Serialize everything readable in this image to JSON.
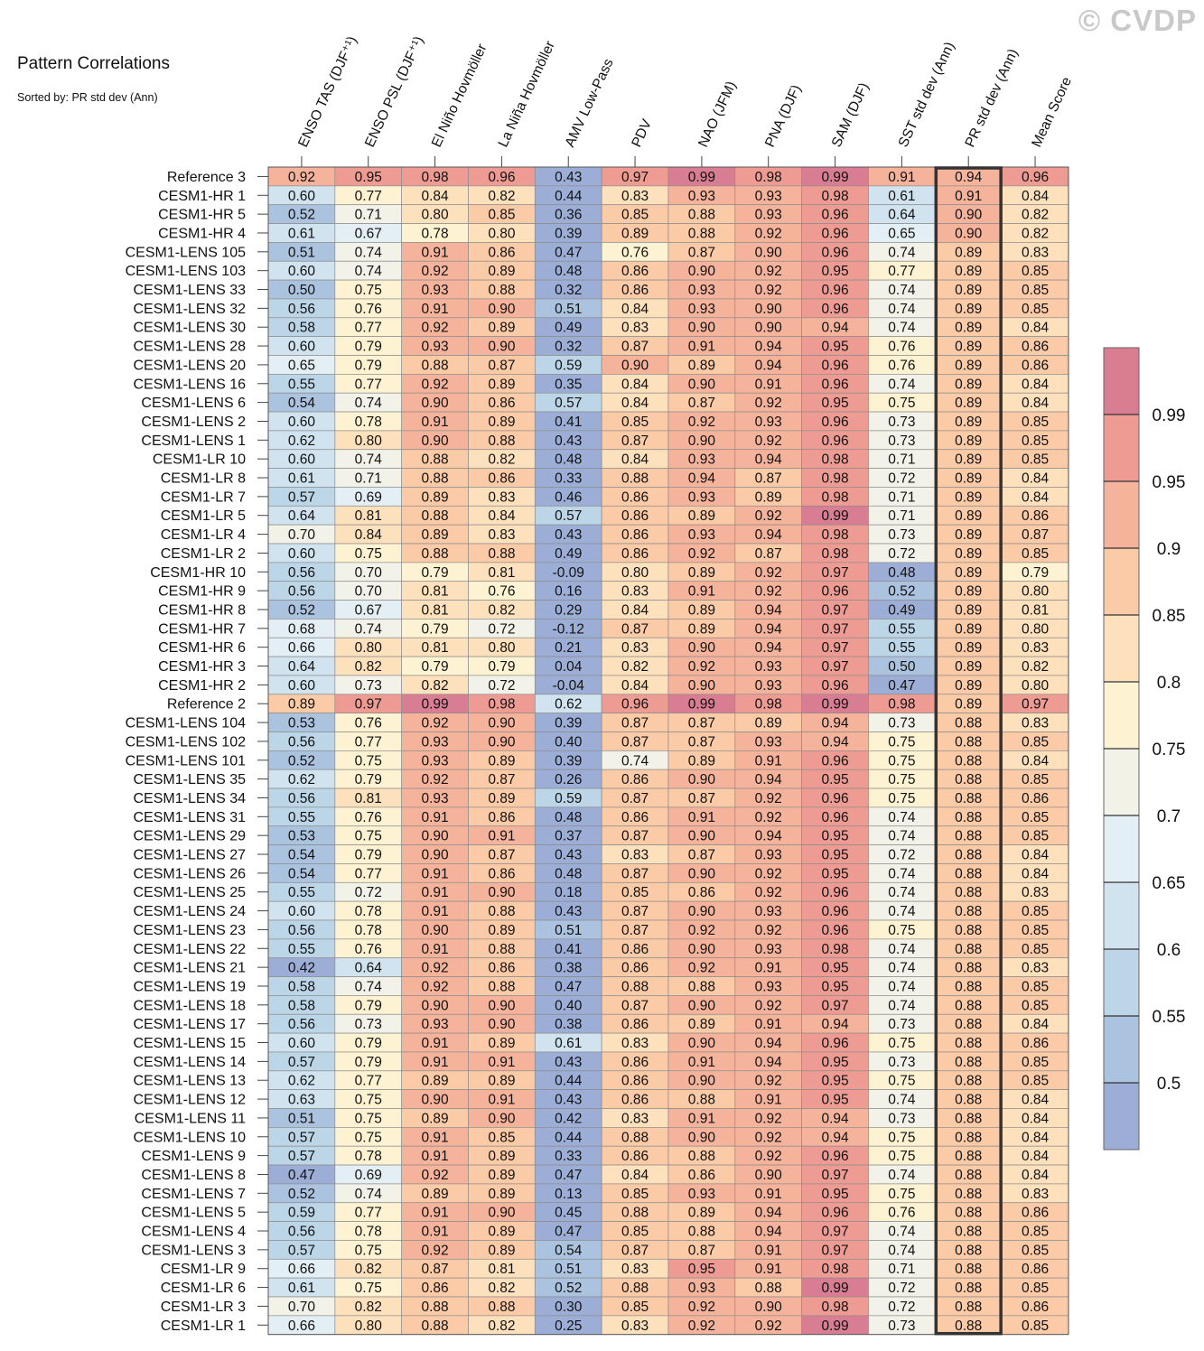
{
  "header": {
    "title": "Pattern Correlations",
    "subtitle": "Sorted by: PR std dev (Ann)",
    "watermark": "© CVDP"
  },
  "chart_data": {
    "type": "heatmap",
    "columns": [
      "ENSO TAS (DJF⁺¹)",
      "ENSO PSL (DJF⁺¹)",
      "El Niño Hovmöller",
      "La Niña Hovmöller",
      "AMV Low-Pass",
      "PDV",
      "NAO (JFM)",
      "PNA (DJF)",
      "SAM (DJF)",
      "SST std dev (Ann)",
      "PR std dev (Ann)",
      "Mean Score"
    ],
    "highlighted_column": "PR std dev (Ann)",
    "rows": [
      {
        "name": "Reference 3",
        "values": [
          "0.92",
          "0.95",
          "0.98",
          "0.96",
          "0.43",
          "0.97",
          "0.99",
          "0.98",
          "0.99",
          "0.91",
          "0.94",
          "0.96"
        ]
      },
      {
        "name": "CESM1-HR 1",
        "values": [
          "0.60",
          "0.77",
          "0.84",
          "0.82",
          "0.44",
          "0.83",
          "0.93",
          "0.93",
          "0.98",
          "0.61",
          "0.91",
          "0.84"
        ]
      },
      {
        "name": "CESM1-HR 5",
        "values": [
          "0.52",
          "0.71",
          "0.80",
          "0.85",
          "0.36",
          "0.85",
          "0.88",
          "0.93",
          "0.96",
          "0.64",
          "0.90",
          "0.82"
        ]
      },
      {
        "name": "CESM1-HR 4",
        "values": [
          "0.61",
          "0.67",
          "0.78",
          "0.80",
          "0.39",
          "0.89",
          "0.88",
          "0.92",
          "0.96",
          "0.65",
          "0.90",
          "0.82"
        ]
      },
      {
        "name": "CESM1-LENS 105",
        "values": [
          "0.51",
          "0.74",
          "0.91",
          "0.86",
          "0.47",
          "0.76",
          "0.87",
          "0.90",
          "0.96",
          "0.74",
          "0.89",
          "0.83"
        ]
      },
      {
        "name": "CESM1-LENS 103",
        "values": [
          "0.60",
          "0.74",
          "0.92",
          "0.89",
          "0.48",
          "0.86",
          "0.90",
          "0.92",
          "0.95",
          "0.77",
          "0.89",
          "0.85"
        ]
      },
      {
        "name": "CESM1-LENS 33",
        "values": [
          "0.50",
          "0.75",
          "0.93",
          "0.88",
          "0.32",
          "0.86",
          "0.93",
          "0.92",
          "0.96",
          "0.74",
          "0.89",
          "0.85"
        ]
      },
      {
        "name": "CESM1-LENS 32",
        "values": [
          "0.56",
          "0.76",
          "0.91",
          "0.90",
          "0.51",
          "0.84",
          "0.93",
          "0.90",
          "0.96",
          "0.74",
          "0.89",
          "0.85"
        ]
      },
      {
        "name": "CESM1-LENS 30",
        "values": [
          "0.58",
          "0.77",
          "0.92",
          "0.89",
          "0.49",
          "0.83",
          "0.90",
          "0.90",
          "0.94",
          "0.74",
          "0.89",
          "0.84"
        ]
      },
      {
        "name": "CESM1-LENS 28",
        "values": [
          "0.60",
          "0.79",
          "0.93",
          "0.90",
          "0.32",
          "0.87",
          "0.91",
          "0.94",
          "0.95",
          "0.76",
          "0.89",
          "0.86"
        ]
      },
      {
        "name": "CESM1-LENS 20",
        "values": [
          "0.65",
          "0.79",
          "0.88",
          "0.87",
          "0.59",
          "0.90",
          "0.89",
          "0.94",
          "0.96",
          "0.76",
          "0.89",
          "0.86"
        ]
      },
      {
        "name": "CESM1-LENS 16",
        "values": [
          "0.55",
          "0.77",
          "0.92",
          "0.89",
          "0.35",
          "0.84",
          "0.90",
          "0.91",
          "0.96",
          "0.74",
          "0.89",
          "0.84"
        ]
      },
      {
        "name": "CESM1-LENS 6",
        "values": [
          "0.54",
          "0.74",
          "0.90",
          "0.86",
          "0.57",
          "0.84",
          "0.87",
          "0.92",
          "0.95",
          "0.75",
          "0.89",
          "0.84"
        ]
      },
      {
        "name": "CESM1-LENS 2",
        "values": [
          "0.60",
          "0.78",
          "0.91",
          "0.89",
          "0.41",
          "0.85",
          "0.92",
          "0.93",
          "0.96",
          "0.73",
          "0.89",
          "0.85"
        ]
      },
      {
        "name": "CESM1-LENS 1",
        "values": [
          "0.62",
          "0.80",
          "0.90",
          "0.88",
          "0.43",
          "0.87",
          "0.90",
          "0.92",
          "0.96",
          "0.73",
          "0.89",
          "0.85"
        ]
      },
      {
        "name": "CESM1-LR 10",
        "values": [
          "0.60",
          "0.74",
          "0.88",
          "0.82",
          "0.48",
          "0.84",
          "0.93",
          "0.94",
          "0.98",
          "0.71",
          "0.89",
          "0.85"
        ]
      },
      {
        "name": "CESM1-LR 8",
        "values": [
          "0.61",
          "0.71",
          "0.88",
          "0.86",
          "0.33",
          "0.88",
          "0.94",
          "0.87",
          "0.98",
          "0.72",
          "0.89",
          "0.84"
        ]
      },
      {
        "name": "CESM1-LR 7",
        "values": [
          "0.57",
          "0.69",
          "0.89",
          "0.83",
          "0.46",
          "0.86",
          "0.93",
          "0.89",
          "0.98",
          "0.71",
          "0.89",
          "0.84"
        ]
      },
      {
        "name": "CESM1-LR 5",
        "values": [
          "0.64",
          "0.81",
          "0.88",
          "0.84",
          "0.57",
          "0.86",
          "0.89",
          "0.92",
          "0.99",
          "0.71",
          "0.89",
          "0.86"
        ]
      },
      {
        "name": "CESM1-LR 4",
        "values": [
          "0.70",
          "0.84",
          "0.89",
          "0.83",
          "0.43",
          "0.86",
          "0.93",
          "0.94",
          "0.98",
          "0.73",
          "0.89",
          "0.87"
        ]
      },
      {
        "name": "CESM1-LR 2",
        "values": [
          "0.60",
          "0.75",
          "0.88",
          "0.88",
          "0.49",
          "0.86",
          "0.92",
          "0.87",
          "0.98",
          "0.72",
          "0.89",
          "0.85"
        ]
      },
      {
        "name": "CESM1-HR 10",
        "values": [
          "0.56",
          "0.70",
          "0.79",
          "0.81",
          "-0.09",
          "0.80",
          "0.89",
          "0.92",
          "0.97",
          "0.48",
          "0.89",
          "0.79"
        ]
      },
      {
        "name": "CESM1-HR 9",
        "values": [
          "0.56",
          "0.70",
          "0.81",
          "0.76",
          "0.16",
          "0.83",
          "0.91",
          "0.92",
          "0.96",
          "0.52",
          "0.89",
          "0.80"
        ]
      },
      {
        "name": "CESM1-HR 8",
        "values": [
          "0.52",
          "0.67",
          "0.81",
          "0.82",
          "0.29",
          "0.84",
          "0.89",
          "0.94",
          "0.97",
          "0.49",
          "0.89",
          "0.81"
        ]
      },
      {
        "name": "CESM1-HR 7",
        "values": [
          "0.68",
          "0.74",
          "0.79",
          "0.72",
          "-0.12",
          "0.87",
          "0.89",
          "0.94",
          "0.97",
          "0.55",
          "0.89",
          "0.80"
        ]
      },
      {
        "name": "CESM1-HR 6",
        "values": [
          "0.66",
          "0.80",
          "0.81",
          "0.80",
          "0.21",
          "0.83",
          "0.90",
          "0.94",
          "0.97",
          "0.55",
          "0.89",
          "0.83"
        ]
      },
      {
        "name": "CESM1-HR 3",
        "values": [
          "0.64",
          "0.82",
          "0.79",
          "0.79",
          "0.04",
          "0.82",
          "0.92",
          "0.93",
          "0.97",
          "0.50",
          "0.89",
          "0.82"
        ]
      },
      {
        "name": "CESM1-HR 2",
        "values": [
          "0.60",
          "0.73",
          "0.82",
          "0.72",
          "-0.04",
          "0.84",
          "0.90",
          "0.93",
          "0.96",
          "0.47",
          "0.89",
          "0.80"
        ]
      },
      {
        "name": "Reference 2",
        "values": [
          "0.89",
          "0.97",
          "0.99",
          "0.98",
          "0.62",
          "0.96",
          "0.99",
          "0.98",
          "0.99",
          "0.98",
          "0.89",
          "0.97"
        ]
      },
      {
        "name": "CESM1-LENS 104",
        "values": [
          "0.53",
          "0.76",
          "0.92",
          "0.90",
          "0.39",
          "0.87",
          "0.87",
          "0.89",
          "0.94",
          "0.73",
          "0.88",
          "0.83"
        ]
      },
      {
        "name": "CESM1-LENS 102",
        "values": [
          "0.56",
          "0.77",
          "0.93",
          "0.90",
          "0.40",
          "0.87",
          "0.87",
          "0.93",
          "0.94",
          "0.75",
          "0.88",
          "0.85"
        ]
      },
      {
        "name": "CESM1-LENS 101",
        "values": [
          "0.52",
          "0.75",
          "0.93",
          "0.89",
          "0.39",
          "0.74",
          "0.89",
          "0.91",
          "0.96",
          "0.75",
          "0.88",
          "0.84"
        ]
      },
      {
        "name": "CESM1-LENS 35",
        "values": [
          "0.62",
          "0.79",
          "0.92",
          "0.87",
          "0.26",
          "0.86",
          "0.90",
          "0.94",
          "0.95",
          "0.75",
          "0.88",
          "0.85"
        ]
      },
      {
        "name": "CESM1-LENS 34",
        "values": [
          "0.56",
          "0.81",
          "0.93",
          "0.89",
          "0.59",
          "0.87",
          "0.87",
          "0.92",
          "0.96",
          "0.75",
          "0.88",
          "0.86"
        ]
      },
      {
        "name": "CESM1-LENS 31",
        "values": [
          "0.55",
          "0.76",
          "0.91",
          "0.86",
          "0.48",
          "0.86",
          "0.91",
          "0.92",
          "0.96",
          "0.74",
          "0.88",
          "0.85"
        ]
      },
      {
        "name": "CESM1-LENS 29",
        "values": [
          "0.53",
          "0.75",
          "0.90",
          "0.91",
          "0.37",
          "0.87",
          "0.90",
          "0.94",
          "0.95",
          "0.74",
          "0.88",
          "0.85"
        ]
      },
      {
        "name": "CESM1-LENS 27",
        "values": [
          "0.54",
          "0.79",
          "0.90",
          "0.87",
          "0.43",
          "0.83",
          "0.87",
          "0.93",
          "0.95",
          "0.72",
          "0.88",
          "0.84"
        ]
      },
      {
        "name": "CESM1-LENS 26",
        "values": [
          "0.54",
          "0.77",
          "0.91",
          "0.86",
          "0.48",
          "0.87",
          "0.90",
          "0.92",
          "0.95",
          "0.74",
          "0.88",
          "0.84"
        ]
      },
      {
        "name": "CESM1-LENS 25",
        "values": [
          "0.55",
          "0.72",
          "0.91",
          "0.90",
          "0.18",
          "0.85",
          "0.86",
          "0.92",
          "0.96",
          "0.74",
          "0.88",
          "0.83"
        ]
      },
      {
        "name": "CESM1-LENS 24",
        "values": [
          "0.60",
          "0.78",
          "0.91",
          "0.88",
          "0.43",
          "0.87",
          "0.90",
          "0.93",
          "0.96",
          "0.74",
          "0.88",
          "0.85"
        ]
      },
      {
        "name": "CESM1-LENS 23",
        "values": [
          "0.56",
          "0.78",
          "0.90",
          "0.89",
          "0.51",
          "0.87",
          "0.92",
          "0.92",
          "0.96",
          "0.75",
          "0.88",
          "0.85"
        ]
      },
      {
        "name": "CESM1-LENS 22",
        "values": [
          "0.55",
          "0.76",
          "0.91",
          "0.88",
          "0.41",
          "0.86",
          "0.90",
          "0.93",
          "0.98",
          "0.74",
          "0.88",
          "0.85"
        ]
      },
      {
        "name": "CESM1-LENS 21",
        "values": [
          "0.42",
          "0.64",
          "0.92",
          "0.86",
          "0.38",
          "0.86",
          "0.92",
          "0.91",
          "0.95",
          "0.74",
          "0.88",
          "0.83"
        ]
      },
      {
        "name": "CESM1-LENS 19",
        "values": [
          "0.58",
          "0.74",
          "0.92",
          "0.88",
          "0.47",
          "0.88",
          "0.88",
          "0.93",
          "0.95",
          "0.74",
          "0.88",
          "0.85"
        ]
      },
      {
        "name": "CESM1-LENS 18",
        "values": [
          "0.58",
          "0.79",
          "0.90",
          "0.90",
          "0.40",
          "0.87",
          "0.90",
          "0.92",
          "0.97",
          "0.74",
          "0.88",
          "0.85"
        ]
      },
      {
        "name": "CESM1-LENS 17",
        "values": [
          "0.56",
          "0.73",
          "0.93",
          "0.90",
          "0.38",
          "0.86",
          "0.89",
          "0.91",
          "0.94",
          "0.73",
          "0.88",
          "0.84"
        ]
      },
      {
        "name": "CESM1-LENS 15",
        "values": [
          "0.60",
          "0.79",
          "0.91",
          "0.89",
          "0.61",
          "0.83",
          "0.90",
          "0.94",
          "0.96",
          "0.75",
          "0.88",
          "0.86"
        ]
      },
      {
        "name": "CESM1-LENS 14",
        "values": [
          "0.57",
          "0.79",
          "0.91",
          "0.91",
          "0.43",
          "0.86",
          "0.91",
          "0.94",
          "0.95",
          "0.73",
          "0.88",
          "0.85"
        ]
      },
      {
        "name": "CESM1-LENS 13",
        "values": [
          "0.62",
          "0.77",
          "0.89",
          "0.89",
          "0.44",
          "0.86",
          "0.90",
          "0.92",
          "0.95",
          "0.75",
          "0.88",
          "0.85"
        ]
      },
      {
        "name": "CESM1-LENS 12",
        "values": [
          "0.63",
          "0.75",
          "0.90",
          "0.91",
          "0.43",
          "0.86",
          "0.88",
          "0.91",
          "0.95",
          "0.74",
          "0.88",
          "0.84"
        ]
      },
      {
        "name": "CESM1-LENS 11",
        "values": [
          "0.51",
          "0.75",
          "0.89",
          "0.90",
          "0.42",
          "0.83",
          "0.91",
          "0.92",
          "0.94",
          "0.73",
          "0.88",
          "0.84"
        ]
      },
      {
        "name": "CESM1-LENS 10",
        "values": [
          "0.57",
          "0.75",
          "0.91",
          "0.85",
          "0.44",
          "0.88",
          "0.90",
          "0.92",
          "0.94",
          "0.75",
          "0.88",
          "0.84"
        ]
      },
      {
        "name": "CESM1-LENS 9",
        "values": [
          "0.57",
          "0.78",
          "0.91",
          "0.89",
          "0.33",
          "0.86",
          "0.88",
          "0.92",
          "0.96",
          "0.75",
          "0.88",
          "0.84"
        ]
      },
      {
        "name": "CESM1-LENS 8",
        "values": [
          "0.47",
          "0.69",
          "0.92",
          "0.89",
          "0.47",
          "0.84",
          "0.86",
          "0.90",
          "0.97",
          "0.74",
          "0.88",
          "0.84"
        ]
      },
      {
        "name": "CESM1-LENS 7",
        "values": [
          "0.52",
          "0.74",
          "0.89",
          "0.89",
          "0.13",
          "0.85",
          "0.93",
          "0.91",
          "0.95",
          "0.75",
          "0.88",
          "0.83"
        ]
      },
      {
        "name": "CESM1-LENS 5",
        "values": [
          "0.59",
          "0.77",
          "0.91",
          "0.90",
          "0.45",
          "0.88",
          "0.89",
          "0.94",
          "0.96",
          "0.76",
          "0.88",
          "0.86"
        ]
      },
      {
        "name": "CESM1-LENS 4",
        "values": [
          "0.56",
          "0.78",
          "0.91",
          "0.89",
          "0.47",
          "0.85",
          "0.88",
          "0.94",
          "0.97",
          "0.74",
          "0.88",
          "0.85"
        ]
      },
      {
        "name": "CESM1-LENS 3",
        "values": [
          "0.57",
          "0.75",
          "0.92",
          "0.89",
          "0.54",
          "0.87",
          "0.87",
          "0.91",
          "0.97",
          "0.74",
          "0.88",
          "0.85"
        ]
      },
      {
        "name": "CESM1-LR 9",
        "values": [
          "0.66",
          "0.82",
          "0.87",
          "0.81",
          "0.51",
          "0.83",
          "0.95",
          "0.91",
          "0.98",
          "0.71",
          "0.88",
          "0.86"
        ]
      },
      {
        "name": "CESM1-LR 6",
        "values": [
          "0.61",
          "0.75",
          "0.86",
          "0.82",
          "0.52",
          "0.88",
          "0.93",
          "0.88",
          "0.99",
          "0.72",
          "0.88",
          "0.85"
        ]
      },
      {
        "name": "CESM1-LR 3",
        "values": [
          "0.70",
          "0.82",
          "0.88",
          "0.88",
          "0.30",
          "0.85",
          "0.92",
          "0.90",
          "0.98",
          "0.72",
          "0.88",
          "0.86"
        ]
      },
      {
        "name": "CESM1-LR 1",
        "values": [
          "0.66",
          "0.80",
          "0.88",
          "0.82",
          "0.25",
          "0.83",
          "0.92",
          "0.92",
          "0.99",
          "0.73",
          "0.88",
          "0.85"
        ]
      }
    ],
    "colorbar": {
      "levels": [
        0.5,
        0.55,
        0.6,
        0.65,
        0.7,
        0.75,
        0.8,
        0.85,
        0.9,
        0.95,
        0.99
      ],
      "tick_labels": [
        "0.5",
        "0.55",
        "0.6",
        "0.65",
        "0.7",
        "0.75",
        "0.8",
        "0.85",
        "0.9",
        "0.95",
        "0.99"
      ],
      "colors": [
        "#9daed6",
        "#abc3df",
        "#bcd6e8",
        "#d0e3ee",
        "#e3eff4",
        "#f2f2e8",
        "#fdf2d2",
        "#fde0bc",
        "#fbcaa6",
        "#f5b39c",
        "#ee9c93",
        "#d97d92"
      ]
    }
  }
}
